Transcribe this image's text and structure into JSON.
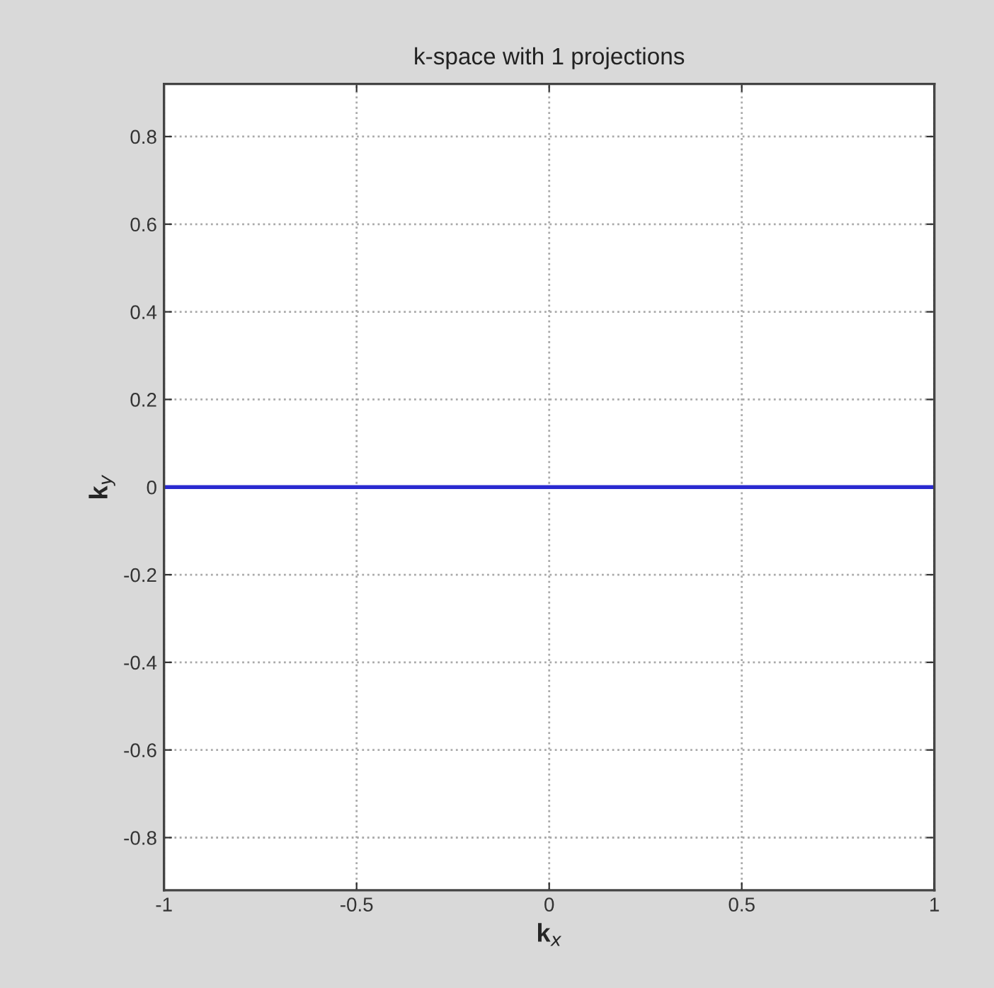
{
  "chart_data": {
    "type": "line",
    "title": "k-space with 1 projections",
    "xlabel": "k$_{x}$",
    "ylabel": "k$_{y}$",
    "x": [
      -1,
      1
    ],
    "series": [
      {
        "color": "#2a2ad0",
        "values": [
          0,
          0
        ]
      }
    ],
    "xlim": [
      -1,
      1
    ],
    "xticks": [
      -1,
      -0.5,
      0,
      0.5,
      1
    ],
    "ylim": [
      -0.92,
      0.92
    ],
    "yticks": [
      -0.8,
      -0.6,
      -0.4,
      -0.2,
      0,
      0.2,
      0.4,
      0.6,
      0.8
    ],
    "grid": true,
    "line_style": "solid"
  }
}
